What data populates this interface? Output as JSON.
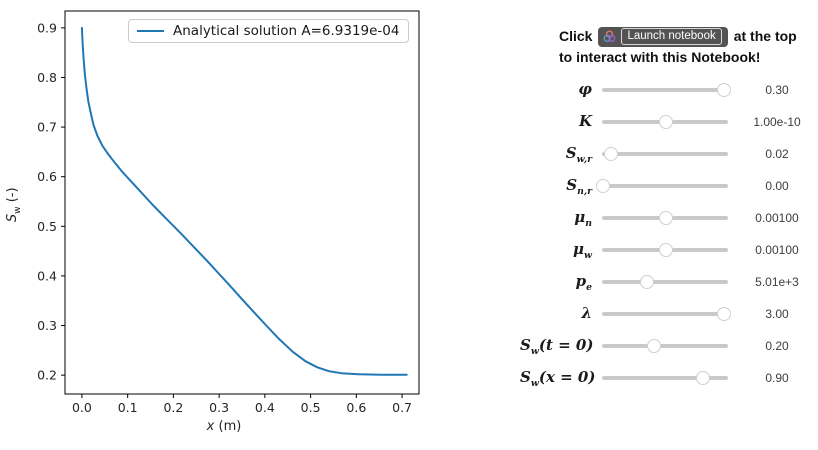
{
  "figure": {
    "legend": {
      "label": "Analytical solution A=6.9319e-04"
    },
    "xlabel": {
      "var": "x",
      "unit": " (m)"
    },
    "ylabel": {
      "var": "S",
      "sub": "w",
      "unit": " (-)"
    }
  },
  "chart_data": {
    "type": "line",
    "title": "",
    "xlabel": "x (m)",
    "ylabel": "Sw (-)",
    "xlim": [
      -0.037,
      0.737
    ],
    "ylim": [
      0.162,
      0.934
    ],
    "xticks": [
      0.0,
      0.1,
      0.2,
      0.3,
      0.4,
      0.5,
      0.6,
      0.7
    ],
    "yticks": [
      0.2,
      0.3,
      0.4,
      0.5,
      0.6,
      0.7,
      0.8,
      0.9
    ],
    "grid": false,
    "legend_position": "upper right",
    "series": [
      {
        "name": "Analytical solution A=6.9319e-04",
        "color": "#1f77b4",
        "points": [
          [
            0.0,
            0.9
          ],
          [
            0.002,
            0.862
          ],
          [
            0.004,
            0.832
          ],
          [
            0.007,
            0.802
          ],
          [
            0.01,
            0.778
          ],
          [
            0.014,
            0.752
          ],
          [
            0.019,
            0.73
          ],
          [
            0.025,
            0.705
          ],
          [
            0.034,
            0.682
          ],
          [
            0.045,
            0.662
          ],
          [
            0.058,
            0.645
          ],
          [
            0.072,
            0.628
          ],
          [
            0.088,
            0.61
          ],
          [
            0.106,
            0.592
          ],
          [
            0.128,
            0.57
          ],
          [
            0.155,
            0.543
          ],
          [
            0.185,
            0.515
          ],
          [
            0.215,
            0.487
          ],
          [
            0.245,
            0.458
          ],
          [
            0.272,
            0.432
          ],
          [
            0.297,
            0.407
          ],
          [
            0.323,
            0.381
          ],
          [
            0.35,
            0.353
          ],
          [
            0.377,
            0.326
          ],
          [
            0.404,
            0.299
          ],
          [
            0.432,
            0.272
          ],
          [
            0.461,
            0.247
          ],
          [
            0.489,
            0.228
          ],
          [
            0.514,
            0.216
          ],
          [
            0.54,
            0.208
          ],
          [
            0.567,
            0.204
          ],
          [
            0.605,
            0.202
          ],
          [
            0.655,
            0.201
          ],
          [
            0.71,
            0.201
          ]
        ]
      }
    ]
  },
  "header": {
    "click_prefix": "Click",
    "badge_label": "Launch notebook",
    "click_suffix": "at the top",
    "line2": "to interact with this Notebook!",
    "badge_bg": "#535353",
    "logo_colors": [
      "#e8726d",
      "#579aca",
      "#9a5fc7"
    ]
  },
  "sliders": {
    "track_color": "#c9c9c9",
    "rows": [
      {
        "label": {
          "main": "φ",
          "sub": "",
          "suffix": ""
        },
        "value": "0.30",
        "fraction": 0.97
      },
      {
        "label": {
          "main": "K",
          "sub": "",
          "suffix": ""
        },
        "value": "1.00e-10",
        "fraction": 0.51
      },
      {
        "label": {
          "main": "S",
          "sub": "w,r",
          "suffix": ""
        },
        "value": "0.02",
        "fraction": 0.07
      },
      {
        "label": {
          "main": "S",
          "sub": "n,r",
          "suffix": ""
        },
        "value": "0.00",
        "fraction": 0.005
      },
      {
        "label": {
          "main": "μ",
          "sub": "n",
          "suffix": ""
        },
        "value": "0.00100",
        "fraction": 0.51
      },
      {
        "label": {
          "main": "μ",
          "sub": "w",
          "suffix": ""
        },
        "value": "0.00100",
        "fraction": 0.51
      },
      {
        "label": {
          "main": "p",
          "sub": "e",
          "suffix": ""
        },
        "value": "5.01e+3",
        "fraction": 0.36
      },
      {
        "label": {
          "main": "λ",
          "sub": "",
          "suffix": ""
        },
        "value": "3.00",
        "fraction": 0.97
      },
      {
        "label": {
          "main": "S",
          "sub": "w",
          "suffix": "(t = 0)"
        },
        "value": "0.20",
        "fraction": 0.41
      },
      {
        "label": {
          "main": "S",
          "sub": "w",
          "suffix": "(x = 0)"
        },
        "value": "0.90",
        "fraction": 0.8
      }
    ]
  }
}
